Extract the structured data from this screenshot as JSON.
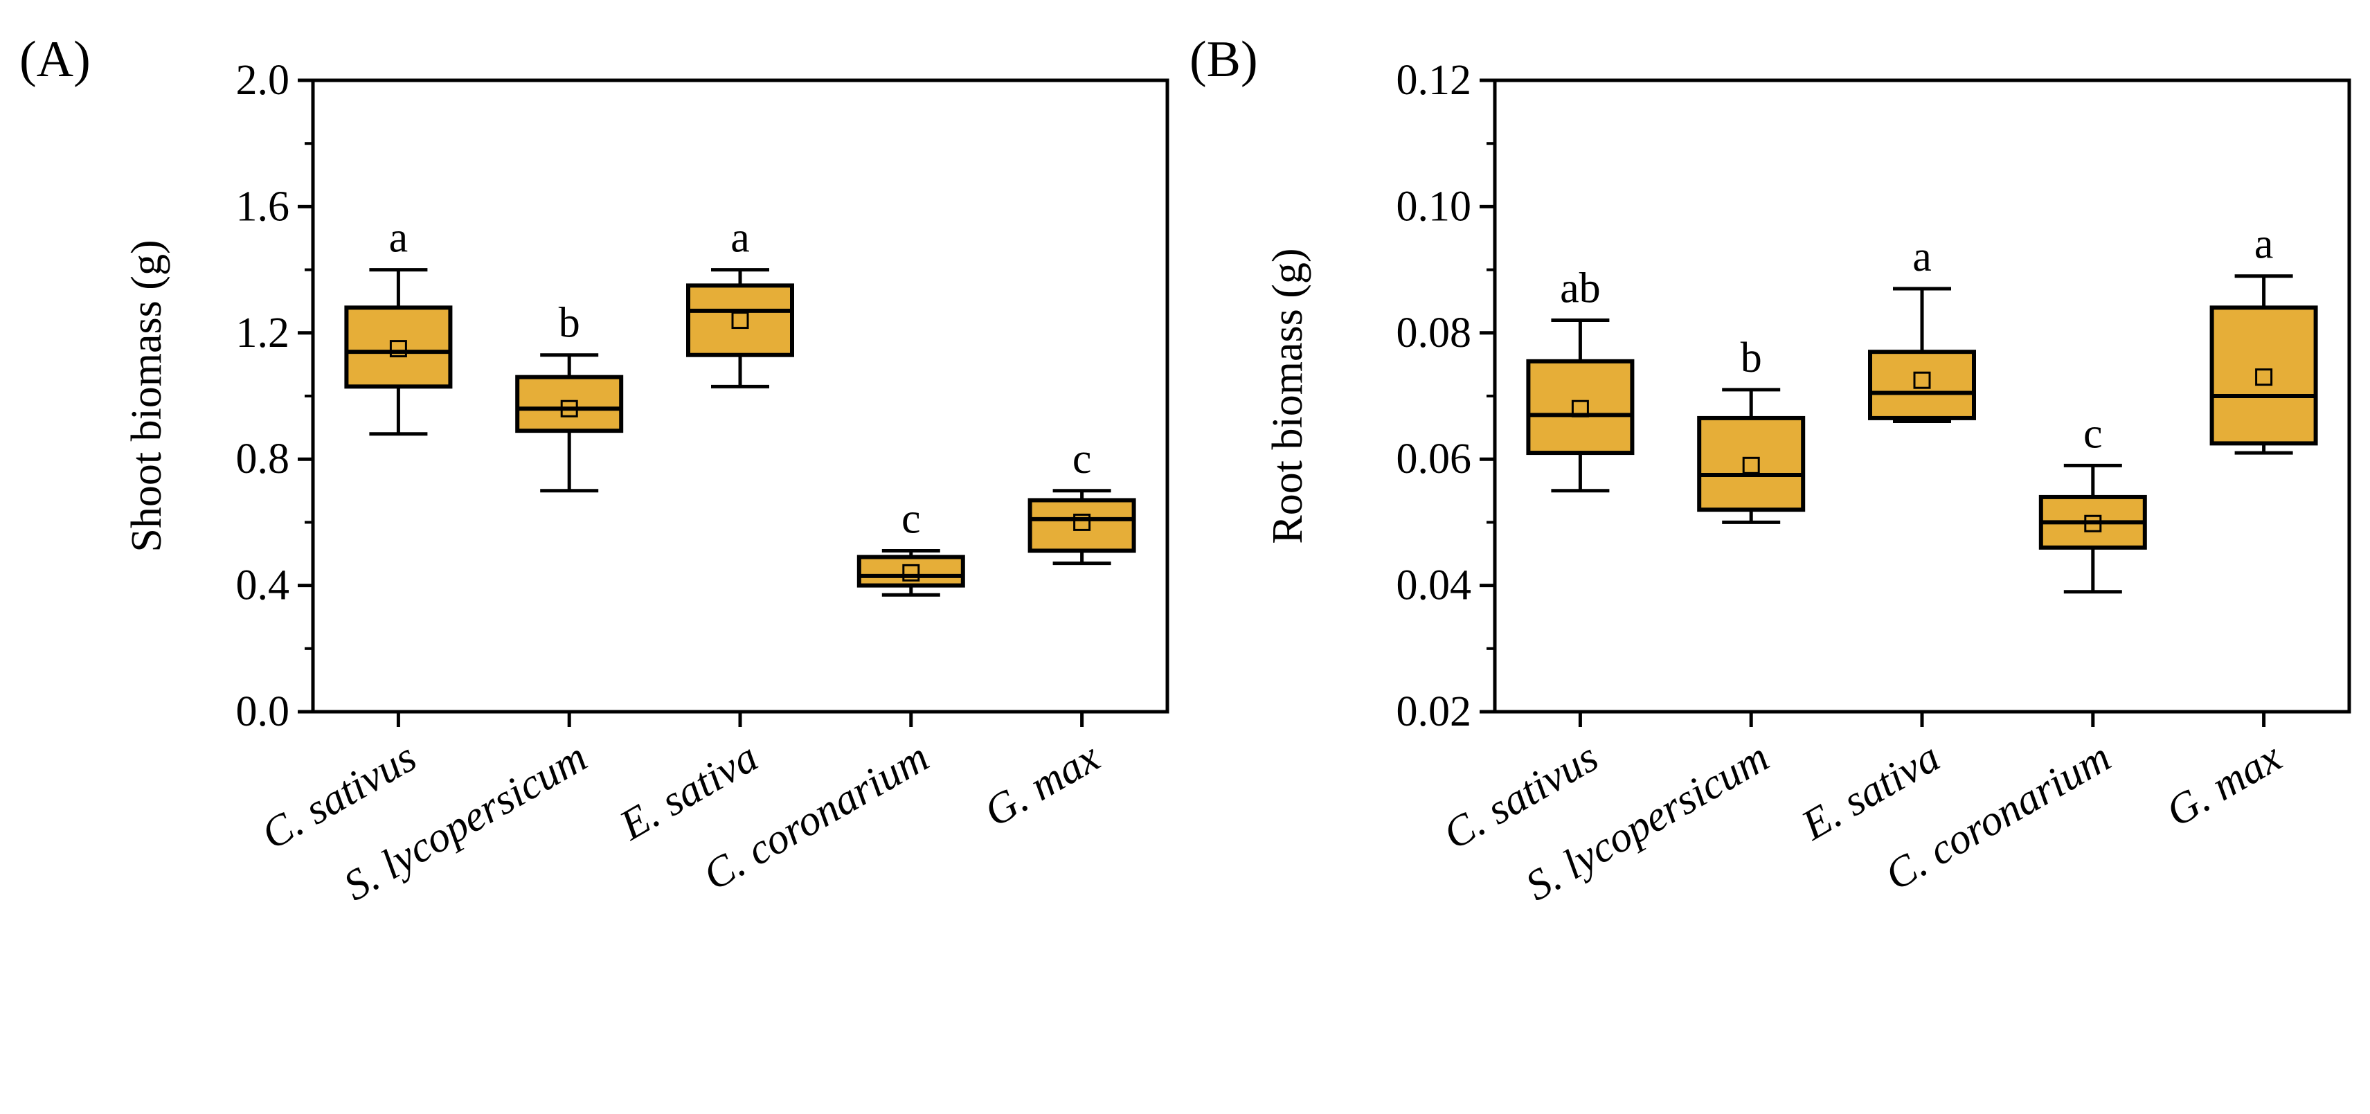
{
  "chart_data": [
    {
      "type": "box",
      "panel_label": "(A)",
      "ylabel": "Shoot biomass (g)",
      "ylim": [
        0.0,
        2.0
      ],
      "yticks": [
        "0.0",
        "0.4",
        "0.8",
        "1.2",
        "1.6",
        "2.0"
      ],
      "categories": [
        "C. sativus",
        "S. lycopersicum",
        "E. sativa",
        "C. coronarium",
        "G. max"
      ],
      "boxes": [
        {
          "category": "C. sativus",
          "whisker_low": 0.88,
          "q1": 1.03,
          "median": 1.14,
          "q3": 1.28,
          "whisker_high": 1.4,
          "mean": 1.15,
          "sig": "a"
        },
        {
          "category": "S. lycopersicum",
          "whisker_low": 0.7,
          "q1": 0.89,
          "median": 0.96,
          "q3": 1.06,
          "whisker_high": 1.13,
          "mean": 0.96,
          "sig": "b"
        },
        {
          "category": "E. sativa",
          "whisker_low": 1.03,
          "q1": 1.13,
          "median": 1.27,
          "q3": 1.35,
          "whisker_high": 1.4,
          "mean": 1.24,
          "sig": "a"
        },
        {
          "category": "C. coronarium",
          "whisker_low": 0.37,
          "q1": 0.4,
          "median": 0.43,
          "q3": 0.49,
          "whisker_high": 0.51,
          "mean": 0.44,
          "sig": "c"
        },
        {
          "category": "G. max",
          "whisker_low": 0.47,
          "q1": 0.51,
          "median": 0.61,
          "q3": 0.67,
          "whisker_high": 0.7,
          "mean": 0.6,
          "sig": "c"
        }
      ]
    },
    {
      "type": "box",
      "panel_label": "(B)",
      "ylabel": "Root biomass (g)",
      "ylim": [
        0.02,
        0.12
      ],
      "yticks": [
        "0.02",
        "0.04",
        "0.06",
        "0.08",
        "0.10",
        "0.12"
      ],
      "categories": [
        "C. sativus",
        "S. lycopersicum",
        "E. sativa",
        "C. coronarium",
        "G. max"
      ],
      "boxes": [
        {
          "category": "C. sativus",
          "whisker_low": 0.055,
          "q1": 0.061,
          "median": 0.067,
          "q3": 0.0755,
          "whisker_high": 0.082,
          "mean": 0.068,
          "sig": "ab"
        },
        {
          "category": "S. lycopersicum",
          "whisker_low": 0.05,
          "q1": 0.052,
          "median": 0.0575,
          "q3": 0.0665,
          "whisker_high": 0.071,
          "mean": 0.059,
          "sig": "b"
        },
        {
          "category": "E. sativa",
          "whisker_low": 0.066,
          "q1": 0.0665,
          "median": 0.0705,
          "q3": 0.077,
          "whisker_high": 0.087,
          "mean": 0.0725,
          "sig": "a"
        },
        {
          "category": "C. coronarium",
          "whisker_low": 0.039,
          "q1": 0.046,
          "median": 0.05,
          "q3": 0.054,
          "whisker_high": 0.059,
          "mean": 0.0498,
          "sig": "c"
        },
        {
          "category": "G. max",
          "whisker_low": 0.061,
          "q1": 0.0625,
          "median": 0.07,
          "q3": 0.084,
          "whisker_high": 0.089,
          "mean": 0.073,
          "sig": "a"
        }
      ]
    }
  ],
  "colors": {
    "box_fill": "#E6AE38",
    "stroke": "#000000",
    "background": "#ffffff"
  }
}
